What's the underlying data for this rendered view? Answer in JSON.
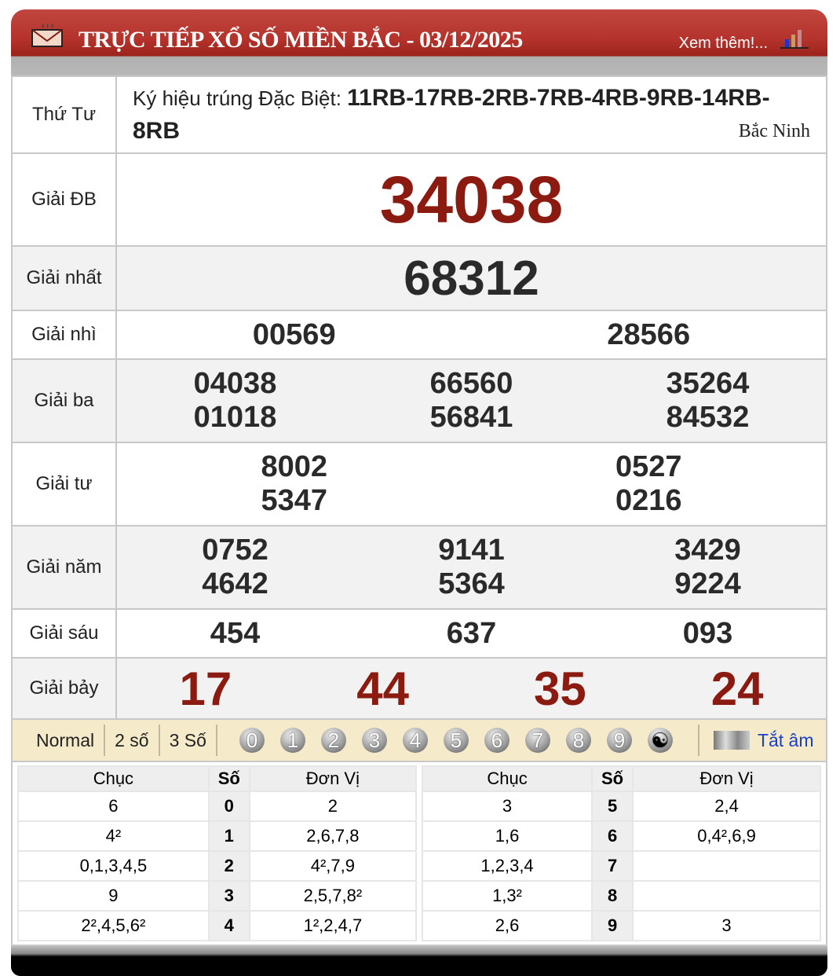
{
  "header": {
    "title": "TRỰC TIẾP XỔ SỐ MIỀN BẮC - 03/12/2025",
    "more": "Xem thêm!..."
  },
  "info": {
    "day": "Thứ Tư",
    "symbol_label": "Ký hiệu trúng Đặc Biệt:",
    "symbols": "11RB-17RB-2RB-7RB-4RB-9RB-14RB-8RB",
    "province": "Bắc Ninh"
  },
  "prizes": [
    {
      "label": "Giải ĐB",
      "cols": 1,
      "numbers": [
        "34038"
      ]
    },
    {
      "label": "Giải nhất",
      "cols": 1,
      "numbers": [
        "68312"
      ]
    },
    {
      "label": "Giải nhì",
      "cols": 2,
      "numbers": [
        "00569",
        "28566"
      ]
    },
    {
      "label": "Giải ba",
      "cols": 3,
      "numbers": [
        "04038",
        "66560",
        "35264",
        "01018",
        "56841",
        "84532"
      ]
    },
    {
      "label": "Giải tư",
      "cols": 2,
      "numbers": [
        "8002",
        "0527",
        "5347",
        "0216"
      ]
    },
    {
      "label": "Giải năm",
      "cols": 3,
      "numbers": [
        "0752",
        "9141",
        "3429",
        "4642",
        "5364",
        "9224"
      ]
    },
    {
      "label": "Giải sáu",
      "cols": 3,
      "numbers": [
        "454",
        "637",
        "093"
      ]
    },
    {
      "label": "Giải bảy",
      "cols": 4,
      "numbers": [
        "17",
        "44",
        "35",
        "24"
      ]
    }
  ],
  "toolbar": {
    "modes": [
      "Normal",
      "2 số",
      "3 Số"
    ],
    "digits": [
      "0",
      "1",
      "2",
      "3",
      "4",
      "5",
      "6",
      "7",
      "8",
      "9"
    ],
    "mute": "Tắt âm"
  },
  "loto": {
    "headers": [
      "Chục",
      "Số",
      "Đơn Vị"
    ],
    "left": [
      [
        "6",
        "0",
        "2"
      ],
      [
        "4²",
        "1",
        "2,6,7,8"
      ],
      [
        "0,1,3,4,5",
        "2",
        "4²,7,9"
      ],
      [
        "9",
        "3",
        "2,5,7,8²"
      ],
      [
        "2²,4,5,6²",
        "4",
        "1²,2,4,7"
      ]
    ],
    "right": [
      [
        "3",
        "5",
        "2,4"
      ],
      [
        "1,6",
        "6",
        "0,4²,6,9"
      ],
      [
        "1,2,3,4",
        "7",
        ""
      ],
      [
        "1,3²",
        "8",
        ""
      ],
      [
        "2,6",
        "9",
        "3"
      ]
    ]
  },
  "colors": {
    "header": "#b5332c",
    "special": "#8b1a10",
    "toolbar": "#f5ebca",
    "link": "#1a3fc8"
  }
}
